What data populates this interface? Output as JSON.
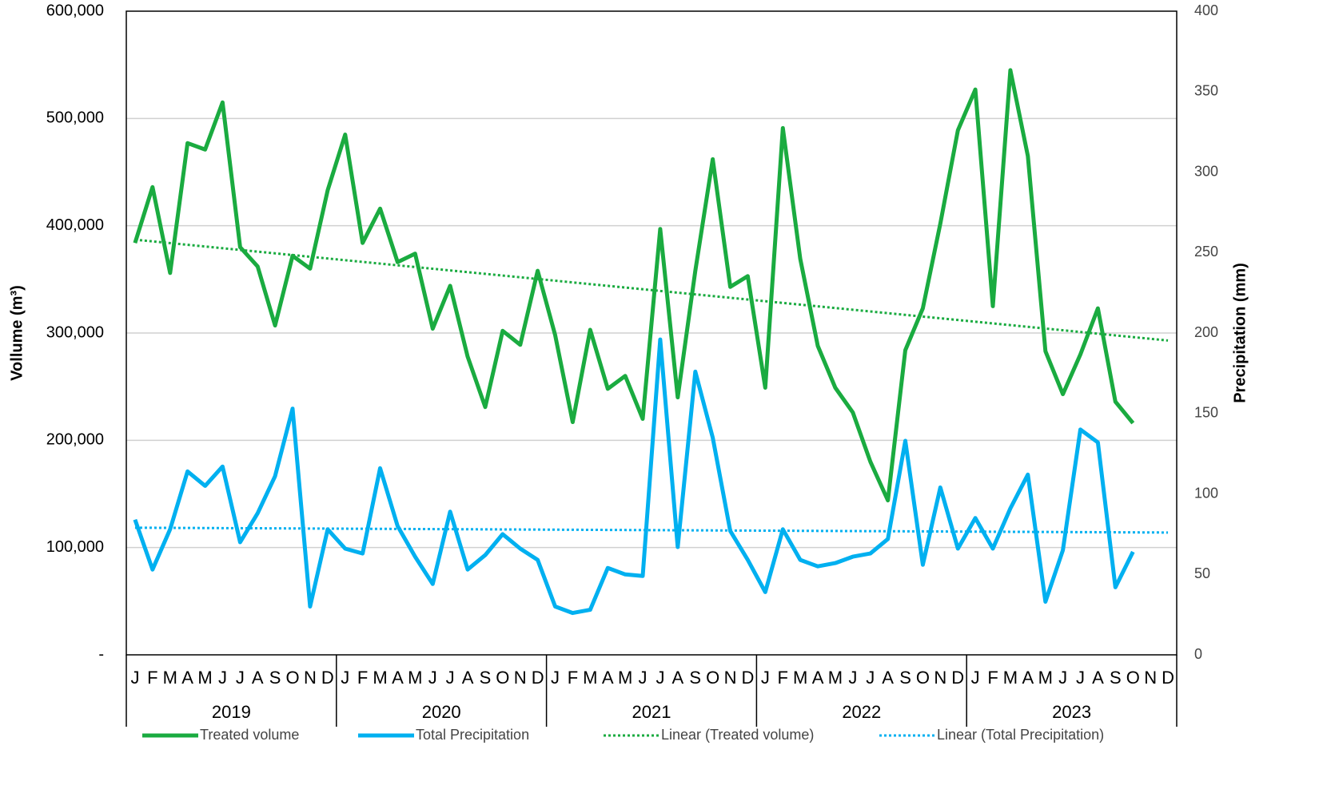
{
  "chart_data": {
    "type": "line",
    "y_label": "Vollume (m³)",
    "y2_label": "Precipitation (mm)",
    "categories": [
      "J",
      "F",
      "M",
      "A",
      "M",
      "J",
      "J",
      "A",
      "S",
      "O",
      "N",
      "D",
      "J",
      "F",
      "M",
      "A",
      "M",
      "J",
      "J",
      "A",
      "S",
      "O",
      "N",
      "D",
      "J",
      "F",
      "M",
      "A",
      "M",
      "J",
      "J",
      "A",
      "S",
      "O",
      "N",
      "D",
      "J",
      "F",
      "M",
      "A",
      "M",
      "J",
      "J",
      "A",
      "S",
      "O",
      "N",
      "D",
      "J",
      "F",
      "M",
      "A",
      "M",
      "J",
      "J",
      "A",
      "S",
      "O",
      "N",
      "D"
    ],
    "years": [
      "2019",
      "2020",
      "2021",
      "2022",
      "2023"
    ],
    "ylim": [
      0,
      600000
    ],
    "yticks": [
      {
        "value": 0,
        "label": "-"
      },
      {
        "value": 100000,
        "label": "100,000"
      },
      {
        "value": 200000,
        "label": "200,000"
      },
      {
        "value": 300000,
        "label": "300,000"
      },
      {
        "value": 400000,
        "label": "400,000"
      },
      {
        "value": 500000,
        "label": "500,000"
      },
      {
        "value": 600000,
        "label": "600,000"
      }
    ],
    "y2lim": [
      0,
      400
    ],
    "y2ticks": [
      0,
      50,
      100,
      150,
      200,
      250,
      300,
      350,
      400
    ],
    "grid": true,
    "legend": "bottom",
    "series": [
      {
        "name": "Treated volume",
        "color": "#1aab40",
        "values": [
          384000,
          436000,
          356000,
          477000,
          471000,
          515000,
          380000,
          362000,
          307000,
          372000,
          360000,
          433000,
          485000,
          384000,
          416000,
          366000,
          374000,
          304000,
          344000,
          278000,
          231000,
          302000,
          289000,
          358000,
          298000,
          217000,
          303000,
          248000,
          260000,
          220000,
          397000,
          240000,
          358000,
          462000,
          343000,
          353000,
          249000,
          491000,
          369000,
          288000,
          249000,
          226000,
          180000,
          144000,
          284000,
          323000,
          402000,
          489000,
          527000,
          325000,
          545000,
          465000,
          283000,
          243000,
          280000,
          323000,
          236000,
          216000,
          null,
          null
        ]
      },
      {
        "name": "Total Precipitation",
        "color": "#00b0f0",
        "axis": "y2",
        "values": [
          84,
          53,
          78,
          114,
          105,
          117,
          70,
          88,
          111,
          153,
          30,
          78,
          66,
          63,
          116,
          80,
          61,
          44,
          89,
          53,
          62,
          75,
          66,
          59,
          30,
          26,
          28,
          54,
          50,
          49,
          196,
          67,
          176,
          135,
          77,
          59,
          39,
          78,
          59,
          55,
          57,
          61,
          63,
          72,
          133,
          56,
          104,
          66,
          85,
          66,
          91,
          112,
          33,
          65,
          140,
          132,
          42,
          64,
          null,
          null
        ]
      }
    ],
    "trendlines": [
      {
        "name": "Linear (Treated volume)",
        "color": "#1aab40",
        "values": [
          387000,
          293000
        ]
      },
      {
        "name": "Linear (Total Precipitation)",
        "color": "#00b0f0",
        "axis": "y2",
        "values": [
          79,
          76
        ]
      }
    ]
  }
}
